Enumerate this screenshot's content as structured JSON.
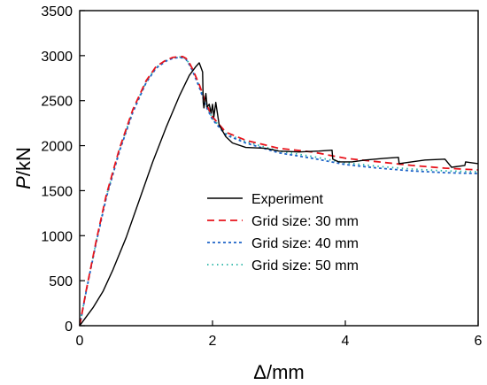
{
  "chart_data": {
    "type": "line",
    "xlabel": "Δ/mm",
    "ylabel_italic": "P",
    "ylabel_rest": "/kN",
    "xlim": [
      0,
      6
    ],
    "ylim": [
      0,
      3500
    ],
    "xticks": [
      "0",
      "2",
      "4",
      "6"
    ],
    "yticks": [
      "0",
      "500",
      "1000",
      "1500",
      "2000",
      "2500",
      "3000",
      "3500"
    ],
    "grid": false,
    "legend_position": "center-right",
    "series": [
      {
        "name": "Experiment",
        "color": "#000000",
        "dash": "solid",
        "x": [
          0,
          0.1,
          0.2,
          0.35,
          0.5,
          0.7,
          0.9,
          1.1,
          1.3,
          1.5,
          1.65,
          1.75,
          1.8,
          1.85,
          1.86,
          1.87,
          1.9,
          1.92,
          1.95,
          1.98,
          2.0,
          2.02,
          2.05,
          2.1,
          2.2,
          2.3,
          2.5,
          2.8,
          3.0,
          3.3,
          3.6,
          3.8,
          3.81,
          3.9,
          4.1,
          4.3,
          4.6,
          4.8,
          4.81,
          4.9,
          5.2,
          5.5,
          5.6,
          5.8,
          5.81,
          6.0
        ],
        "y": [
          0,
          100,
          200,
          380,
          620,
          980,
          1400,
          1820,
          2200,
          2550,
          2780,
          2880,
          2920,
          2820,
          2480,
          2420,
          2580,
          2430,
          2460,
          2360,
          2460,
          2320,
          2480,
          2230,
          2100,
          2030,
          1980,
          1970,
          1940,
          1930,
          1940,
          1950,
          1850,
          1820,
          1820,
          1840,
          1860,
          1870,
          1800,
          1810,
          1840,
          1850,
          1760,
          1780,
          1820,
          1800
        ]
      },
      {
        "name": "Grid size: 30 mm",
        "color": "#e8141c",
        "dash": "8,5",
        "x": [
          0,
          0.1,
          0.25,
          0.4,
          0.6,
          0.8,
          1.0,
          1.15,
          1.3,
          1.4,
          1.5,
          1.55,
          1.6,
          1.65,
          1.7,
          1.8,
          1.9,
          2.0,
          2.2,
          2.5,
          3.0,
          3.5,
          4.0,
          4.5,
          5.0,
          5.5,
          6.0
        ],
        "y": [
          0,
          400,
          950,
          1450,
          1970,
          2400,
          2720,
          2880,
          2950,
          2980,
          2990,
          2990,
          2970,
          2920,
          2850,
          2680,
          2470,
          2320,
          2150,
          2060,
          1970,
          1930,
          1860,
          1820,
          1780,
          1750,
          1730
        ]
      },
      {
        "name": "Grid size: 40 mm",
        "color": "#1e64c8",
        "dash": "3,3",
        "x": [
          0,
          0.1,
          0.25,
          0.4,
          0.6,
          0.8,
          1.0,
          1.15,
          1.3,
          1.4,
          1.5,
          1.55,
          1.6,
          1.65,
          1.7,
          1.8,
          1.9,
          2.0,
          2.2,
          2.5,
          3.0,
          3.5,
          4.0,
          4.5,
          5.0,
          5.5,
          6.0
        ],
        "y": [
          0,
          390,
          930,
          1420,
          1940,
          2370,
          2700,
          2860,
          2940,
          2970,
          2980,
          2975,
          2960,
          2900,
          2830,
          2650,
          2440,
          2290,
          2120,
          2030,
          1920,
          1860,
          1790,
          1750,
          1720,
          1700,
          1690
        ]
      },
      {
        "name": "Grid size: 50 mm",
        "color": "#26b5a5",
        "dash": "1.5,4",
        "x": [
          0,
          0.1,
          0.25,
          0.4,
          0.6,
          0.8,
          1.0,
          1.15,
          1.3,
          1.4,
          1.5,
          1.55,
          1.6,
          1.65,
          1.7,
          1.8,
          1.9,
          2.0,
          2.2,
          2.5,
          3.0,
          3.5,
          4.0,
          4.5,
          5.0,
          5.5,
          6.0
        ],
        "y": [
          0,
          395,
          940,
          1435,
          1955,
          2385,
          2710,
          2870,
          2945,
          2975,
          2985,
          2980,
          2965,
          2910,
          2840,
          2665,
          2455,
          2305,
          2135,
          2045,
          1940,
          1880,
          1810,
          1770,
          1740,
          1720,
          1710
        ]
      }
    ]
  }
}
